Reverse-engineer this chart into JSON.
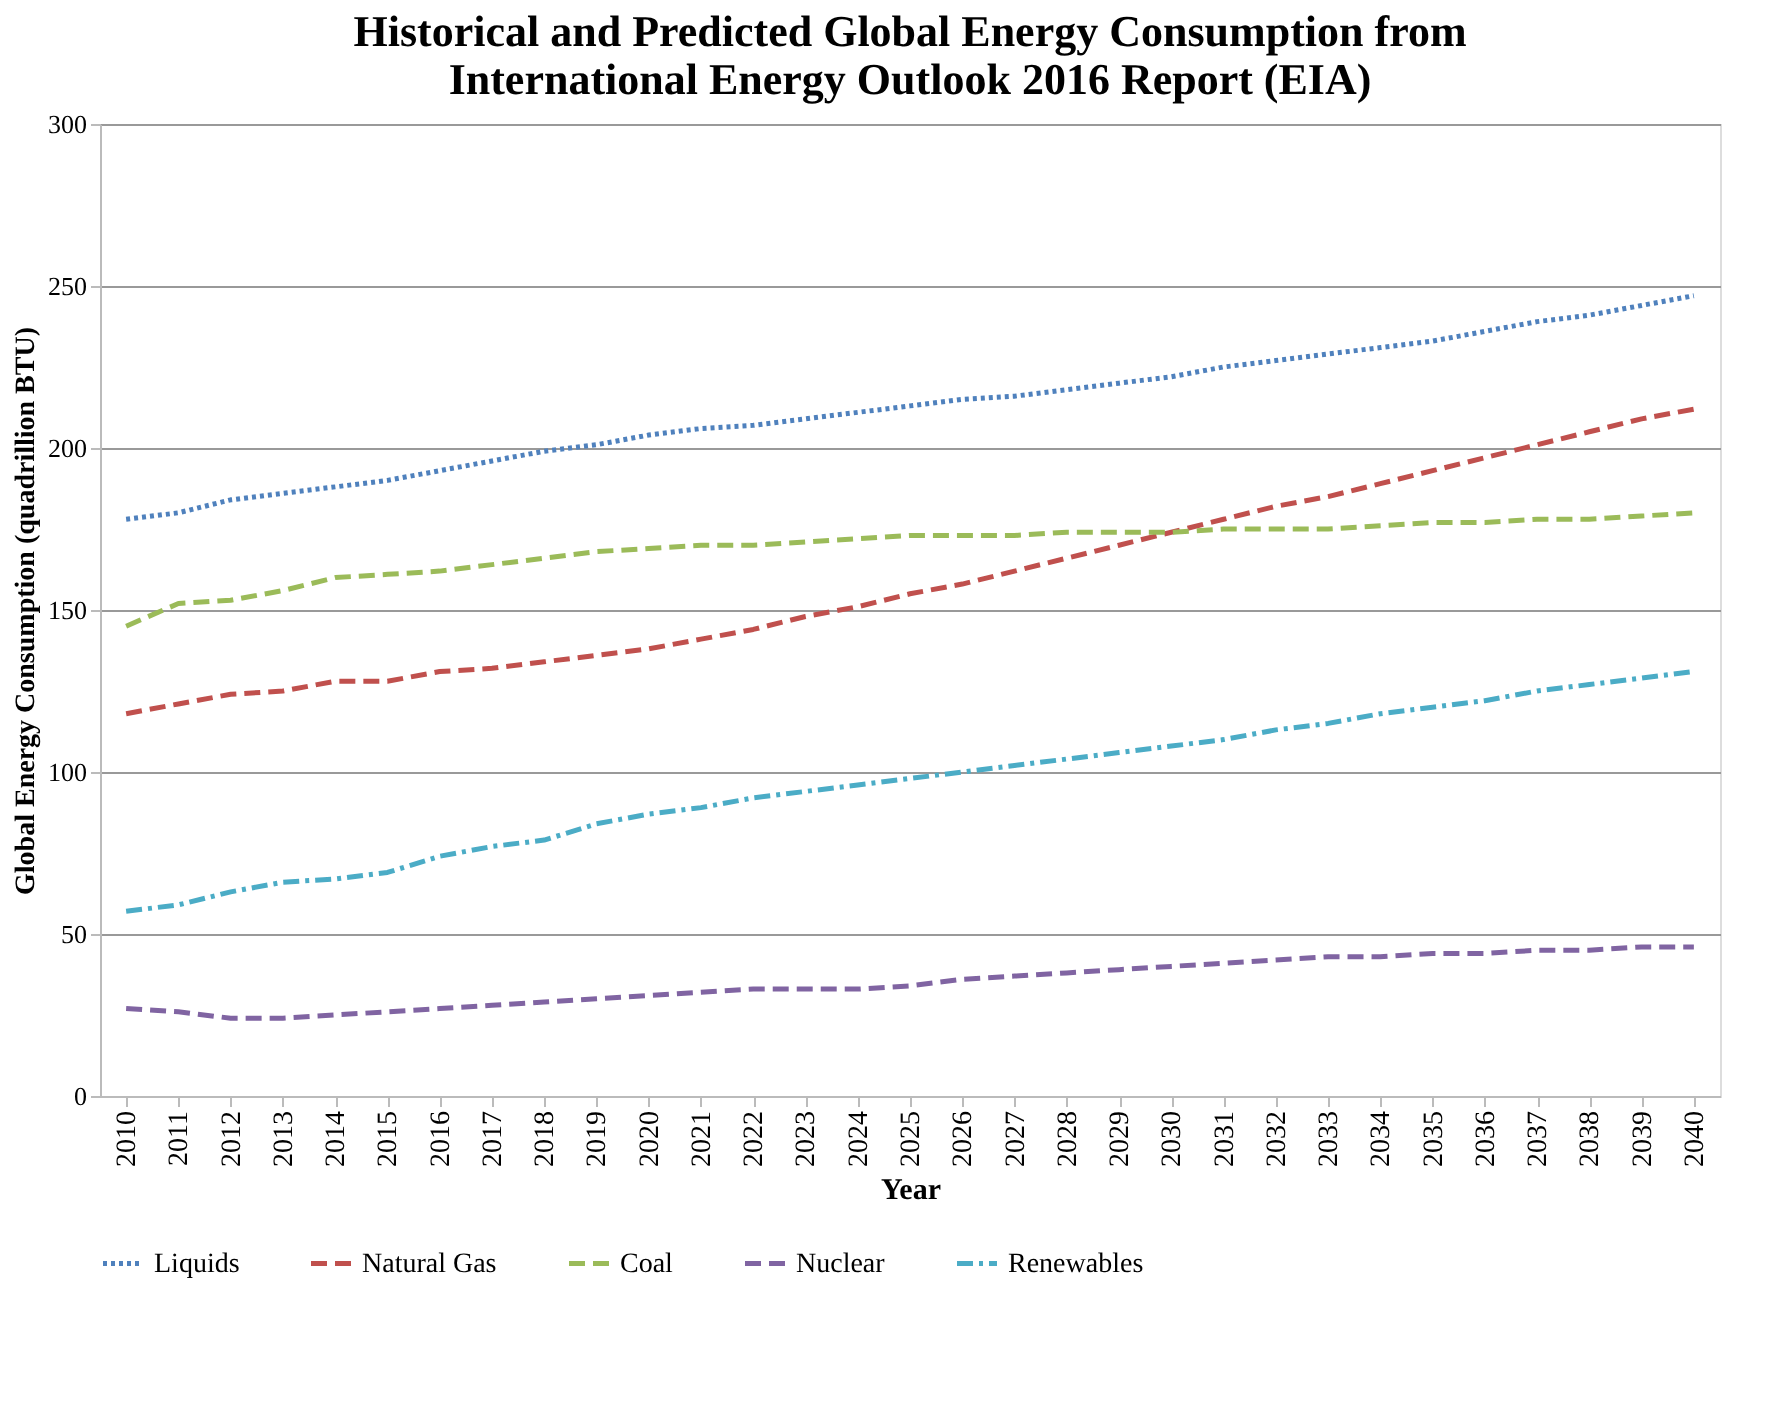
{
  "chart_data": {
    "type": "line",
    "title": [
      "Historical and Predicted Global Energy Consumption from",
      "International Energy Outlook 2016 Report (EIA)"
    ],
    "xlabel": "Year",
    "ylabel": "Global Energy Consumption (quadrillion BTU)",
    "categories": [
      "2010",
      "2011",
      "2012",
      "2013",
      "2014",
      "2015",
      "2016",
      "2017",
      "2018",
      "2019",
      "2020",
      "2021",
      "2022",
      "2023",
      "2024",
      "2025",
      "2026",
      "2027",
      "2028",
      "2029",
      "2030",
      "2031",
      "2032",
      "2033",
      "2034",
      "2035",
      "2036",
      "2037",
      "2038",
      "2039",
      "2040"
    ],
    "ylim": [
      0,
      300
    ],
    "yticks": [
      0,
      50,
      100,
      150,
      200,
      250,
      300
    ],
    "grid": "y",
    "legend": "bottom",
    "marker": "none",
    "series": [
      {
        "name": "Liquids",
        "color": "#4f81bd",
        "line_style": "dotted",
        "values": [
          178,
          180,
          184,
          186,
          188,
          190,
          193,
          196,
          199,
          201,
          204,
          206,
          207,
          209,
          211,
          213,
          215,
          216,
          218,
          220,
          222,
          225,
          227,
          229,
          231,
          233,
          236,
          239,
          241,
          244,
          247
        ]
      },
      {
        "name": "Natural Gas",
        "color": "#c0504d",
        "line_style": "dashed",
        "values": [
          118,
          121,
          124,
          125,
          128,
          128,
          131,
          132,
          134,
          136,
          138,
          141,
          144,
          148,
          151,
          155,
          158,
          162,
          166,
          170,
          174,
          178,
          182,
          185,
          189,
          193,
          197,
          201,
          205,
          209,
          212
        ]
      },
      {
        "name": "Coal",
        "color": "#9bbb59",
        "line_style": "dashed",
        "values": [
          145,
          152,
          153,
          156,
          160,
          161,
          162,
          164,
          166,
          168,
          169,
          170,
          170,
          171,
          172,
          173,
          173,
          173,
          174,
          174,
          174,
          175,
          175,
          175,
          176,
          177,
          177,
          178,
          178,
          179,
          180
        ]
      },
      {
        "name": "Nuclear",
        "color": "#8064a2",
        "line_style": "dashed",
        "values": [
          27,
          26,
          24,
          24,
          25,
          26,
          27,
          28,
          29,
          30,
          31,
          32,
          33,
          33,
          33,
          34,
          36,
          37,
          38,
          39,
          40,
          41,
          42,
          43,
          43,
          44,
          44,
          45,
          45,
          46,
          46
        ]
      },
      {
        "name": "Renewables",
        "color": "#4bacc6",
        "line_style": "dashdot",
        "values": [
          57,
          59,
          63,
          66,
          67,
          69,
          74,
          77,
          79,
          84,
          87,
          89,
          92,
          94,
          96,
          98,
          100,
          102,
          104,
          106,
          108,
          110,
          113,
          115,
          118,
          120,
          122,
          125,
          127,
          129,
          131
        ]
      }
    ]
  }
}
